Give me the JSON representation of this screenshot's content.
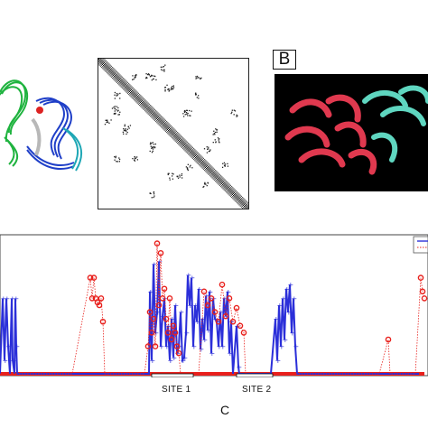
{
  "panel_b": {
    "label": "B"
  },
  "panel_c": {
    "label": "C",
    "sites": [
      {
        "label": "SITE 1",
        "range_text": "?????????"
      },
      {
        "label": "SITE 2",
        "range_text": "?????????"
      }
    ]
  },
  "colors": {
    "helix_green": "#1fb33f",
    "helix_blue": "#1f3fc8",
    "helix_cyan": "#1ea7b5",
    "structure_red": "#e0394f",
    "structure_teal": "#5fd6c0",
    "series_blue": "#2b2fd9",
    "series_red": "#e8201c"
  },
  "chart_data": {
    "type": "line",
    "title": "",
    "xlabel": "",
    "ylabel": "",
    "grid": false,
    "legend_placement": "top-right",
    "series": [
      {
        "color": "blue",
        "points": [
          [
            0,
            0
          ],
          [
            3,
            0.55
          ],
          [
            5,
            0.1
          ],
          [
            7,
            0.55
          ],
          [
            9,
            0.2
          ],
          [
            11,
            0
          ],
          [
            13,
            0.55
          ],
          [
            14,
            0.1
          ],
          [
            16,
            0
          ],
          [
            17,
            0.55
          ],
          [
            18,
            0.2
          ],
          [
            19,
            0
          ],
          [
            20,
            0
          ],
          [
            50,
            0
          ],
          [
            55,
            0
          ],
          [
            100,
            0
          ],
          [
            105,
            0
          ],
          [
            160,
            0
          ],
          [
            165,
            0
          ],
          [
            166,
            0.6
          ],
          [
            168,
            0.1
          ],
          [
            170,
            0.8
          ],
          [
            172,
            0.3
          ],
          [
            174,
            0.45
          ],
          [
            176,
            0.82
          ],
          [
            178,
            0.2
          ],
          [
            180,
            0.42
          ],
          [
            182,
            0.55
          ],
          [
            184,
            0.2
          ],
          [
            186,
            0.35
          ],
          [
            188,
            0.1
          ],
          [
            190,
            0.4
          ],
          [
            192,
            0.12
          ],
          [
            194,
            0.5
          ],
          [
            196,
            0.15
          ],
          [
            198,
            0.2
          ],
          [
            200,
            0.45
          ],
          [
            202,
            0.1
          ],
          [
            204,
            0.12
          ],
          [
            206,
            0.3
          ],
          [
            208,
            0.72
          ],
          [
            210,
            0.5
          ],
          [
            212,
            0.7
          ],
          [
            214,
            0.2
          ],
          [
            216,
            0.5
          ],
          [
            218,
            0.38
          ],
          [
            220,
            0.62
          ],
          [
            222,
            0.18
          ],
          [
            224,
            0.4
          ],
          [
            226,
            0.25
          ],
          [
            228,
            0.57
          ],
          [
            230,
            0.32
          ],
          [
            232,
            0.6
          ],
          [
            234,
            0.15
          ],
          [
            236,
            0.55
          ],
          [
            238,
            0.4
          ],
          [
            240,
            0.38
          ],
          [
            242,
            0.2
          ],
          [
            244,
            0.45
          ],
          [
            246,
            0.2
          ],
          [
            248,
            0.55
          ],
          [
            250,
            0.42
          ],
          [
            252,
            0.6
          ],
          [
            254,
            0.15
          ],
          [
            256,
            0.38
          ],
          [
            258,
            0
          ],
          [
            262,
            0.35
          ],
          [
            264,
            0.05
          ],
          [
            265,
            0
          ],
          [
            300,
            0
          ],
          [
            305,
            0.4
          ],
          [
            307,
            0.1
          ],
          [
            309,
            0.5
          ],
          [
            311,
            0.2
          ],
          [
            313,
            0.55
          ],
          [
            315,
            0.25
          ],
          [
            317,
            0.62
          ],
          [
            319,
            0.45
          ],
          [
            321,
            0.65
          ],
          [
            323,
            0.3
          ],
          [
            325,
            0.55
          ],
          [
            327,
            0.2
          ],
          [
            329,
            0
          ],
          [
            340,
            0
          ],
          [
            400,
            0
          ],
          [
            420,
            0
          ],
          [
            430,
            0
          ],
          [
            460,
            0
          ],
          [
            464,
            0
          ]
        ]
      },
      {
        "color": "red",
        "points": [
          [
            0,
            0
          ],
          [
            20,
            0
          ],
          [
            40,
            0
          ],
          [
            60,
            0
          ],
          [
            80,
            0
          ],
          [
            100,
            0.7
          ],
          [
            102,
            0.55
          ],
          [
            104,
            0.7
          ],
          [
            106,
            0.55
          ],
          [
            108,
            0.52
          ],
          [
            110,
            0.5
          ],
          [
            112,
            0.55
          ],
          [
            114,
            0.38
          ],
          [
            116,
            0
          ],
          [
            120,
            0
          ],
          [
            140,
            0
          ],
          [
            160,
            0
          ],
          [
            164,
            0.2
          ],
          [
            166,
            0.45
          ],
          [
            168,
            0.3
          ],
          [
            170,
            0.4
          ],
          [
            172,
            0.2
          ],
          [
            174,
            0.95
          ],
          [
            176,
            0.5
          ],
          [
            178,
            0.88
          ],
          [
            180,
            0.55
          ],
          [
            182,
            0.62
          ],
          [
            184,
            0.4
          ],
          [
            186,
            0.3
          ],
          [
            188,
            0.55
          ],
          [
            190,
            0.25
          ],
          [
            192,
            0.35
          ],
          [
            194,
            0.3
          ],
          [
            196,
            0.2
          ],
          [
            198,
            0.15
          ],
          [
            200,
            0
          ],
          [
            220,
            0
          ],
          [
            226,
            0.6
          ],
          [
            230,
            0.5
          ],
          [
            234,
            0.55
          ],
          [
            238,
            0.45
          ],
          [
            242,
            0.38
          ],
          [
            246,
            0.65
          ],
          [
            250,
            0.42
          ],
          [
            254,
            0.55
          ],
          [
            258,
            0.38
          ],
          [
            262,
            0.48
          ],
          [
            266,
            0.35
          ],
          [
            270,
            0.3
          ],
          [
            272,
            0
          ],
          [
            300,
            0
          ],
          [
            420,
            0
          ],
          [
            430,
            0.25
          ],
          [
            432,
            0
          ],
          [
            460,
            0
          ],
          [
            466,
            0.7
          ],
          [
            468,
            0.6
          ],
          [
            470,
            0.55
          ]
        ]
      }
    ]
  }
}
